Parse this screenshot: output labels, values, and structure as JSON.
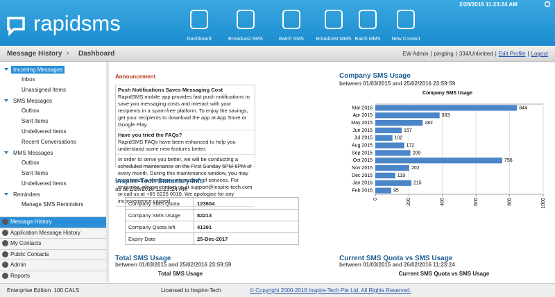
{
  "header": {
    "logo": "rapidsms",
    "datetime": "2/26/2016 11:23:24 AM",
    "nav": [
      "Dashboard",
      "Broadcast SMS",
      "Batch SMS",
      "Broadcast MMS",
      "Batch MMS",
      "New Contact"
    ]
  },
  "breadcrumb": {
    "items": [
      "Message History",
      "Dashboard"
    ],
    "user": "EW Admin",
    "login": "pingting",
    "quota": "334/Unlimited",
    "links": [
      "Edit Profile",
      "Logout"
    ]
  },
  "sidebar": {
    "tree": [
      {
        "label": "Incoming Messages",
        "children": [
          "Inbox",
          "Unassigned Items"
        ]
      },
      {
        "label": "SMS Messages",
        "children": [
          "Outbox",
          "Sent Items",
          "Undelivered Items",
          "Recent Conversations"
        ]
      },
      {
        "label": "MMS Messages",
        "children": [
          "Outbox",
          "Sent Items",
          "Undelivered Items"
        ]
      },
      {
        "label": "Reminders",
        "children": [
          "Manage SMS Reminders"
        ]
      }
    ],
    "panels": [
      "Message History",
      "Application Message History",
      "My Contacts",
      "Public Contacts",
      "Admin",
      "Reports"
    ]
  },
  "announcement": {
    "title": "Announcement",
    "items": [
      {
        "heading": "Push Notifications Saves Messaging Cost",
        "body": "RapidSMS mobile app provides fast push notifications to save you messaging costs and interact with your recipients in a spam-free platform. To enjoy the savings, get your recipients to download the app at App Store or Google Play."
      },
      {
        "heading": "Have you tried the FAQs?",
        "body": "RapidSMS FAQs have been enhanced to help you understand some new features better."
      },
      {
        "body": "In order to serve you better, we will be conducting a scheduled maintenance on the First Sunday 6PM-8PM of every month. During this maintenance window, you may experience a temporary interruption of services. For enquiries, please contact us at support@inspire-tech.com or call us at +65 6225 0010. We apologise for any inconvenience caused."
      }
    ]
  },
  "summary": {
    "title": "Inspire-Tech Summary Info",
    "subtitle": "as at 2/26/2016 11:23:24 AM",
    "rows": [
      [
        "Company SMS Quota",
        123604
      ],
      [
        "Company SMS Usage",
        82213
      ],
      [
        "Company Quota left",
        41391
      ],
      [
        "Expiry Date",
        "25-Dec-2017"
      ]
    ]
  },
  "usage_panel": {
    "title": "Company SMS Usage",
    "subtitle": "between 01/03/2015 and 25/02/2016 23:59:59"
  },
  "chart_data": {
    "type": "bar",
    "orientation": "horizontal",
    "title": "Company SMS Usage",
    "categories": [
      "Mar 2015",
      "Apr 2015",
      "May 2015",
      "Jun 2015",
      "Jul 2015",
      "Aug 2015",
      "Sep 2015",
      "Oct 2015",
      "Nov 2015",
      "Dec 2015",
      "Jan 2016",
      "Feb 2016"
    ],
    "values": [
      844,
      383,
      282,
      157,
      102,
      172,
      209,
      756,
      202,
      119,
      215,
      95
    ],
    "color": "#4a86c8",
    "xlim": [
      0,
      1000
    ],
    "xticks": [
      0,
      200,
      400,
      600,
      800,
      1000
    ],
    "grid": true
  },
  "bottom": [
    {
      "title": "Total SMS Usage",
      "subtitle": "between 01/03/2015 and 25/02/2016 23:59:59",
      "chart_title": "Total SMS Usage"
    },
    {
      "title": "Current SMS Quota vs SMS Usage",
      "subtitle": "between 01/03/2015 and 26/02/2016 11:23:24",
      "chart_title": "Current SMS Quota vs SMS Usage"
    }
  ],
  "footer": {
    "edition": "Enterprise Edition  100 CALS",
    "license": "Licensed to Inspire-Tech",
    "copyright": "© Copyright 2000-2016 Inspire-Tech Pte Ltd. All Rights Reserved."
  }
}
